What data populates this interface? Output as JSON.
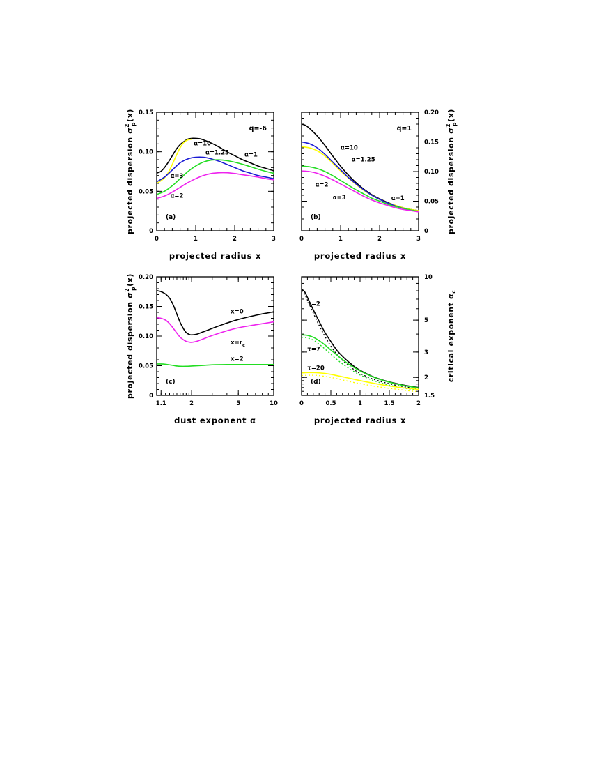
{
  "colors": {
    "black": "#000000",
    "yellow": "#ffff00",
    "blue": "#1a1ad4",
    "green": "#22dd22",
    "magenta": "#ee22ee"
  },
  "chart_data": [
    {
      "id": "a",
      "panel_label": "(a)",
      "type": "line",
      "xlabel": "projected radius x",
      "ylabel": "projected dispersion σ²p(x)",
      "xlim": [
        0,
        3
      ],
      "ylim": [
        0,
        0.15
      ],
      "x_ticks": [
        0,
        1,
        2,
        3
      ],
      "y_ticks": [
        0,
        0.05,
        0.1,
        0.15
      ],
      "x_tick_labels": [
        "0",
        "1",
        "2",
        "3"
      ],
      "y_tick_labels": [
        "0",
        "0.05",
        "0.10",
        "0.15"
      ],
      "yaxis_side": "left",
      "annotation": "q=-6",
      "series": [
        {
          "name": "α=1",
          "color": "black",
          "x": [
            0,
            0.1,
            0.2,
            0.3,
            0.4,
            0.5,
            0.6,
            0.7,
            0.8,
            0.9,
            1.0,
            1.1,
            1.2,
            1.4,
            1.6,
            1.8,
            2.0,
            2.2,
            2.4,
            2.6,
            2.8,
            3.0
          ],
          "y": [
            0.073,
            0.075,
            0.08,
            0.087,
            0.095,
            0.103,
            0.109,
            0.113,
            0.116,
            0.117,
            0.117,
            0.1165,
            0.115,
            0.111,
            0.106,
            0.1,
            0.095,
            0.09,
            0.086,
            0.082,
            0.079,
            0.076
          ]
        },
        {
          "name": "α=10",
          "color": "yellow",
          "x": [
            0,
            0.1,
            0.2,
            0.3,
            0.4,
            0.5,
            0.6,
            0.7,
            0.8,
            0.9
          ],
          "y": [
            0.06,
            0.063,
            0.067,
            0.074,
            0.084,
            0.095,
            0.105,
            0.112,
            0.115,
            0.116
          ]
        },
        {
          "name": "α=1.25",
          "color": "blue",
          "x": [
            0,
            0.2,
            0.4,
            0.6,
            0.8,
            1.0,
            1.2,
            1.4,
            1.6,
            1.8,
            2.0,
            2.2,
            2.4,
            2.6,
            2.8,
            3.0
          ],
          "y": [
            0.062,
            0.068,
            0.077,
            0.086,
            0.091,
            0.093,
            0.093,
            0.091,
            0.088,
            0.084,
            0.08,
            0.076,
            0.073,
            0.07,
            0.068,
            0.066
          ]
        },
        {
          "name": "α=3",
          "color": "green",
          "x": [
            0,
            0.2,
            0.4,
            0.6,
            0.8,
            1.0,
            1.2,
            1.4,
            1.6,
            1.8,
            2.0,
            2.2,
            2.4,
            2.6,
            2.8,
            3.0
          ],
          "y": [
            0.046,
            0.05,
            0.057,
            0.066,
            0.075,
            0.082,
            0.087,
            0.0895,
            0.0898,
            0.0888,
            0.0868,
            0.0842,
            0.0812,
            0.078,
            0.0752,
            0.0728
          ]
        },
        {
          "name": "α=2",
          "color": "magenta",
          "x": [
            0,
            0.2,
            0.4,
            0.6,
            0.8,
            1.0,
            1.2,
            1.4,
            1.6,
            1.8,
            2.0,
            2.2,
            2.4,
            2.6,
            2.8,
            3.0
          ],
          "y": [
            0.041,
            0.044,
            0.049,
            0.055,
            0.061,
            0.066,
            0.07,
            0.0725,
            0.0735,
            0.0735,
            0.0725,
            0.071,
            0.0695,
            0.068,
            0.066,
            0.0645
          ]
        }
      ],
      "labels": [
        {
          "text": "α=10",
          "x": 0.95,
          "y": 0.108
        },
        {
          "text": "α=1.25",
          "x": 1.25,
          "y": 0.0965
        },
        {
          "text": "α=1",
          "x": 2.25,
          "y": 0.094
        },
        {
          "text": "α=3",
          "x": 0.35,
          "y": 0.067
        },
        {
          "text": "α=2",
          "x": 0.35,
          "y": 0.042
        }
      ]
    },
    {
      "id": "b",
      "panel_label": "(b)",
      "type": "line",
      "xlabel": "projected radius x",
      "ylabel": "projected dispersion σ²p(x)",
      "xlim": [
        0,
        3
      ],
      "ylim": [
        0,
        0.2
      ],
      "x_ticks": [
        0,
        1,
        2,
        3
      ],
      "y_ticks": [
        0,
        0.05,
        0.1,
        0.15,
        0.2
      ],
      "x_tick_labels": [
        "0",
        "1",
        "2",
        "3"
      ],
      "y_tick_labels": [
        "0",
        "0.05",
        "0.10",
        "0.15",
        "0.20"
      ],
      "yaxis_side": "right",
      "annotation": "q=1",
      "series": [
        {
          "name": "α=1",
          "color": "black",
          "x": [
            0,
            0.1,
            0.2,
            0.4,
            0.6,
            0.8,
            1.0,
            1.2,
            1.4,
            1.6,
            1.8,
            2.0,
            2.2,
            2.4,
            2.6,
            2.8,
            3.0
          ],
          "y": [
            0.18,
            0.178,
            0.173,
            0.16,
            0.144,
            0.126,
            0.109,
            0.094,
            0.081,
            0.07,
            0.061,
            0.054,
            0.048,
            0.043,
            0.039,
            0.036,
            0.034
          ]
        },
        {
          "name": "α=10",
          "color": "yellow",
          "x": [
            0,
            0.2,
            0.4,
            0.6,
            0.8,
            1.0,
            1.2,
            1.4,
            1.6,
            1.8,
            2.0,
            2.2,
            2.4,
            2.6,
            2.8,
            3.0
          ],
          "y": [
            0.142,
            0.14,
            0.135,
            0.126,
            0.114,
            0.101,
            0.089,
            0.078,
            0.068,
            0.06,
            0.053,
            0.047,
            0.043,
            0.039,
            0.036,
            0.034
          ]
        },
        {
          "name": "α=1.25",
          "color": "blue",
          "x": [
            0,
            0.2,
            0.4,
            0.6,
            0.8,
            1.0,
            1.2,
            1.4,
            1.6,
            1.8,
            2.0,
            2.2,
            2.4,
            2.6,
            2.8,
            3.0
          ],
          "y": [
            0.15,
            0.147,
            0.14,
            0.129,
            0.116,
            0.103,
            0.09,
            0.079,
            0.069,
            0.06,
            0.053,
            0.047,
            0.042,
            0.038,
            0.035,
            0.033
          ]
        },
        {
          "name": "α=3",
          "color": "green",
          "x": [
            0,
            0.2,
            0.4,
            0.6,
            0.8,
            1.0,
            1.2,
            1.4,
            1.6,
            1.8,
            2.0,
            2.2,
            2.4,
            2.6,
            2.8,
            3.0
          ],
          "y": [
            0.109,
            0.108,
            0.105,
            0.1,
            0.093,
            0.085,
            0.077,
            0.069,
            0.062,
            0.055,
            0.05,
            0.045,
            0.041,
            0.038,
            0.035,
            0.033
          ]
        },
        {
          "name": "α=2",
          "color": "magenta",
          "x": [
            0,
            0.2,
            0.4,
            0.6,
            0.8,
            1.0,
            1.2,
            1.4,
            1.6,
            1.8,
            2.0,
            2.2,
            2.4,
            2.6,
            2.8,
            3.0
          ],
          "y": [
            0.101,
            0.1,
            0.097,
            0.092,
            0.086,
            0.079,
            0.072,
            0.065,
            0.058,
            0.052,
            0.047,
            0.043,
            0.039,
            0.036,
            0.034,
            0.032
          ]
        }
      ],
      "labels": [
        {
          "text": "α=10",
          "x": 1.0,
          "y": 0.137
        },
        {
          "text": "α=1.25",
          "x": 1.28,
          "y": 0.117
        },
        {
          "text": "α=2",
          "x": 0.35,
          "y": 0.075
        },
        {
          "text": "α=3",
          "x": 0.8,
          "y": 0.053
        },
        {
          "text": "α=1",
          "x": 2.3,
          "y": 0.052
        }
      ]
    },
    {
      "id": "c",
      "panel_label": "(c)",
      "type": "line",
      "xlabel": "dust exponent α",
      "ylabel": "projected dispersion σ²p(x)",
      "xscale": "log",
      "xlim": [
        1.01,
        10
      ],
      "ylim": [
        0,
        0.2
      ],
      "x_ticks": [
        1.1,
        2,
        5,
        10
      ],
      "y_ticks": [
        0,
        0.05,
        0.1,
        0.15,
        0.2
      ],
      "x_tick_labels": [
        "1.1",
        "2",
        "5",
        "10"
      ],
      "y_tick_labels": [
        "0",
        "0.05",
        "0.10",
        "0.15",
        "0.20"
      ],
      "yaxis_side": "left",
      "series": [
        {
          "name": "x=0",
          "color": "black",
          "x": [
            1.01,
            1.05,
            1.1,
            1.2,
            1.3,
            1.4,
            1.5,
            1.6,
            1.7,
            1.8,
            1.9,
            2.0,
            2.2,
            2.5,
            3,
            4,
            5,
            7,
            10
          ],
          "y": [
            0.177,
            0.176,
            0.175,
            0.171,
            0.164,
            0.152,
            0.137,
            0.123,
            0.113,
            0.106,
            0.103,
            0.102,
            0.103,
            0.107,
            0.113,
            0.122,
            0.128,
            0.135,
            0.141
          ]
        },
        {
          "name": "x=r_c",
          "color": "magenta",
          "x": [
            1.01,
            1.1,
            1.2,
            1.3,
            1.4,
            1.5,
            1.6,
            1.7,
            1.8,
            1.9,
            2.0,
            2.2,
            2.5,
            3,
            4,
            5,
            7,
            10
          ],
          "y": [
            0.131,
            0.13,
            0.127,
            0.121,
            0.113,
            0.105,
            0.098,
            0.094,
            0.091,
            0.09,
            0.0895,
            0.091,
            0.095,
            0.101,
            0.109,
            0.114,
            0.119,
            0.124
          ]
        },
        {
          "name": "x=2",
          "color": "green",
          "x": [
            1.01,
            1.1,
            1.2,
            1.3,
            1.4,
            1.5,
            1.6,
            1.8,
            2.0,
            2.5,
            3,
            4,
            5,
            7,
            10
          ],
          "y": [
            0.053,
            0.053,
            0.0525,
            0.0515,
            0.0505,
            0.0495,
            0.049,
            0.049,
            0.0495,
            0.0505,
            0.0515,
            0.052,
            0.052,
            0.052,
            0.052
          ]
        }
      ],
      "labels": [
        {
          "text": "x=0",
          "x": 4.3,
          "y": 0.138
        },
        {
          "text": "x=r",
          "x": 4.3,
          "y": 0.086
        },
        {
          "text": "x=2",
          "x": 4.3,
          "y": 0.058
        }
      ],
      "label_subscript": "c"
    },
    {
      "id": "d",
      "panel_label": "(d)",
      "type": "line",
      "xlabel": "projected radius x",
      "ylabel": "critical exponent α",
      "ylabel_subscript": "c",
      "xlim": [
        0,
        2
      ],
      "yscale": "log",
      "ylim": [
        1.5,
        10
      ],
      "x_ticks": [
        0,
        0.5,
        1,
        1.5,
        2
      ],
      "y_ticks": [
        1.5,
        2,
        3,
        5,
        10
      ],
      "x_tick_labels": [
        "0",
        "0.5",
        "1",
        "1.5",
        "2"
      ],
      "y_tick_labels": [
        "1.5",
        "2",
        "3",
        "5",
        "10"
      ],
      "yaxis_side": "right",
      "series": [
        {
          "name": "τ=2",
          "color": "black",
          "x": [
            0,
            0.05,
            0.1,
            0.2,
            0.3,
            0.4,
            0.5,
            0.6,
            0.7,
            0.8,
            0.9,
            1.0,
            1.2,
            1.4,
            1.6,
            1.8,
            2.0
          ],
          "y": [
            8.2,
            7.9,
            7.2,
            5.9,
            4.9,
            4.1,
            3.55,
            3.1,
            2.8,
            2.57,
            2.38,
            2.24,
            2.04,
            1.91,
            1.82,
            1.75,
            1.7
          ]
        },
        {
          "name": "τ=2 dotted",
          "color": "black",
          "dotted": true,
          "x": [
            0,
            0.05,
            0.1,
            0.2,
            0.3,
            0.4,
            0.5,
            0.6,
            0.7,
            0.8,
            0.9,
            1.0,
            1.2,
            1.4,
            1.6,
            1.8,
            2.0
          ],
          "y": [
            8.0,
            7.6,
            6.9,
            5.6,
            4.6,
            3.85,
            3.3,
            2.9,
            2.62,
            2.42,
            2.26,
            2.13,
            1.96,
            1.85,
            1.77,
            1.71,
            1.66
          ]
        },
        {
          "name": "τ=7",
          "color": "green",
          "x": [
            0,
            0.1,
            0.2,
            0.3,
            0.4,
            0.5,
            0.6,
            0.7,
            0.8,
            0.9,
            1.0,
            1.2,
            1.4,
            1.6,
            1.8,
            2.0
          ],
          "y": [
            3.95,
            3.92,
            3.8,
            3.6,
            3.36,
            3.1,
            2.87,
            2.66,
            2.48,
            2.34,
            2.22,
            2.03,
            1.9,
            1.81,
            1.74,
            1.69
          ]
        },
        {
          "name": "τ=7 dotted",
          "color": "green",
          "dotted": true,
          "x": [
            0,
            0.1,
            0.2,
            0.3,
            0.4,
            0.5,
            0.6,
            0.7,
            0.8,
            0.9,
            1.0,
            1.2,
            1.4,
            1.6,
            1.8,
            2.0
          ],
          "y": [
            3.8,
            3.76,
            3.63,
            3.4,
            3.15,
            2.9,
            2.67,
            2.48,
            2.32,
            2.19,
            2.08,
            1.92,
            1.81,
            1.73,
            1.67,
            1.63
          ]
        },
        {
          "name": "τ=20",
          "color": "yellow",
          "x": [
            0,
            0.1,
            0.2,
            0.3,
            0.4,
            0.5,
            0.6,
            0.7,
            0.8,
            0.9,
            1.0,
            1.2,
            1.4,
            1.6,
            1.8,
            2.0
          ],
          "y": [
            2.15,
            2.16,
            2.16,
            2.15,
            2.13,
            2.1,
            2.06,
            2.02,
            1.98,
            1.94,
            1.9,
            1.83,
            1.77,
            1.72,
            1.68,
            1.65
          ]
        },
        {
          "name": "τ=20 dotted",
          "color": "yellow",
          "dotted": true,
          "x": [
            0,
            0.1,
            0.2,
            0.3,
            0.4,
            0.5,
            0.6,
            0.7,
            0.8,
            0.9,
            1.0,
            1.2,
            1.4,
            1.6,
            1.8,
            2.0
          ],
          "y": [
            2.06,
            2.07,
            2.07,
            2.06,
            2.03,
            2.0,
            1.96,
            1.92,
            1.88,
            1.84,
            1.81,
            1.75,
            1.7,
            1.66,
            1.62,
            1.59
          ]
        }
      ],
      "labels": [
        {
          "text": "τ=2",
          "x": 0.1,
          "y": 6.3
        },
        {
          "text": "τ=7",
          "x": 0.1,
          "y": 3.05
        },
        {
          "text": "τ=20",
          "x": 0.1,
          "y": 2.25
        }
      ]
    }
  ]
}
